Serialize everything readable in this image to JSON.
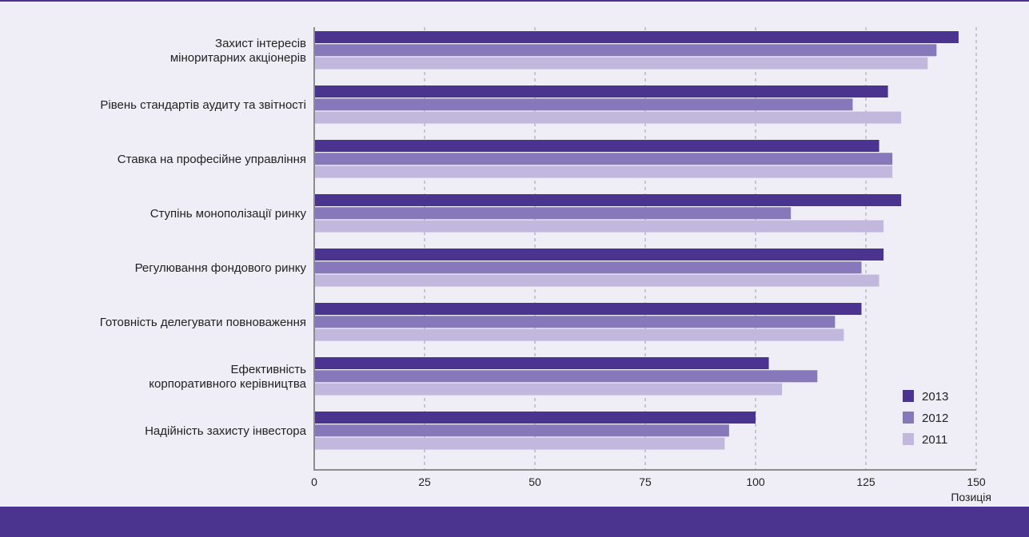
{
  "chart_data": {
    "type": "bar",
    "orientation": "horizontal",
    "title": "",
    "xlabel": "Позиція",
    "ylabel": "",
    "xlim": [
      0,
      150
    ],
    "xticks": [
      0,
      25,
      50,
      75,
      100,
      125,
      150
    ],
    "grid": "vertical dashed",
    "legend_position": "bottom-right",
    "categories": [
      [
        "Захист інтересів",
        "міноритарних акціонерів"
      ],
      [
        "Рівень стандартів аудиту та звітності"
      ],
      [
        "Ставка на професійне управління"
      ],
      [
        "Ступінь монополізації ринку"
      ],
      [
        "Регулювання фондового ринку"
      ],
      [
        "Готовність делегувати повноваження"
      ],
      [
        "Ефективність",
        "корпоративного керівництва"
      ],
      [
        "Надійність захисту інвестора"
      ]
    ],
    "series": [
      {
        "name": "2013",
        "color": "#4b3490",
        "values": [
          146,
          130,
          128,
          133,
          129,
          124,
          103,
          100
        ]
      },
      {
        "name": "2012",
        "color": "#8777bb",
        "values": [
          141,
          122,
          131,
          108,
          124,
          118,
          114,
          94
        ]
      },
      {
        "name": "2011",
        "color": "#c2b8dd",
        "values": [
          139,
          133,
          131,
          129,
          128,
          120,
          106,
          93
        ]
      }
    ]
  }
}
